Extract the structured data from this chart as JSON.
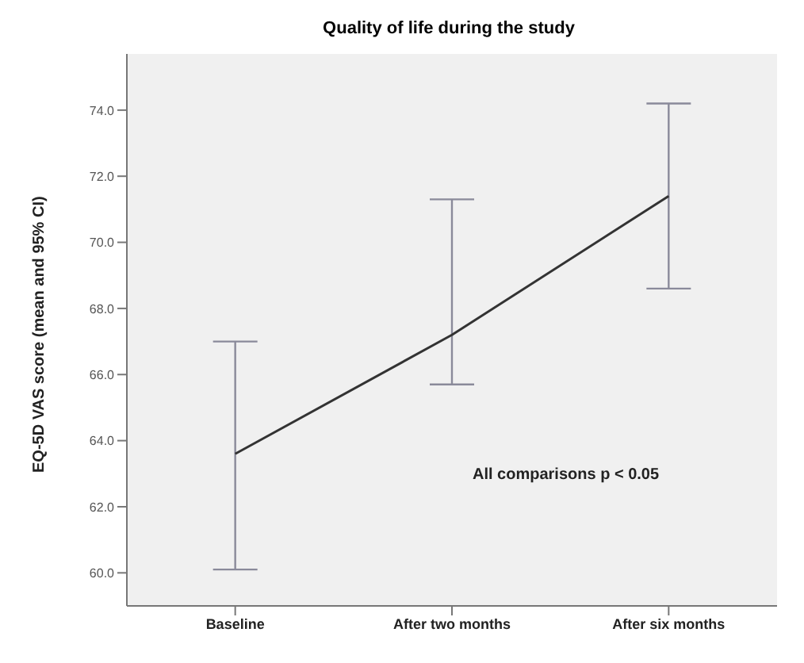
{
  "chart_data": {
    "type": "line",
    "title": "Quality of life during the study",
    "ylabel": "EQ-5D VAS score (mean and 95% CI)",
    "categories": [
      "Baseline",
      "After two months",
      "After six months"
    ],
    "series": [
      {
        "color": "#333333",
        "values": [
          63.6,
          67.2,
          71.4
        ],
        "errors": [
          [
            60.1,
            67.0
          ],
          [
            65.7,
            71.3
          ],
          [
            68.6,
            74.2
          ]
        ]
      }
    ],
    "ylim": [
      59,
      75.7
    ],
    "yticks": [
      {
        "value": 60,
        "label": "60.0"
      },
      {
        "value": 62,
        "label": "62.0"
      },
      {
        "value": 64,
        "label": "64.0"
      },
      {
        "value": 66,
        "label": "66.0"
      },
      {
        "value": 68,
        "label": "68.0"
      },
      {
        "value": 70,
        "label": "70.0"
      },
      {
        "value": 72,
        "label": "72.0"
      },
      {
        "value": 74,
        "label": "74.0"
      }
    ],
    "annotations": [
      "All comparisons p < 0.05"
    ],
    "grid": false,
    "marker": "none",
    "line_style": "solid"
  }
}
